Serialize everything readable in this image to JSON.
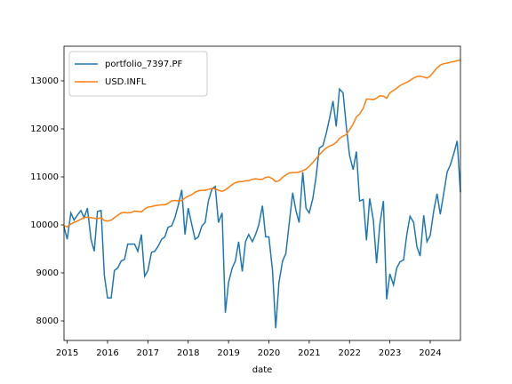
{
  "chart_data": {
    "type": "line",
    "xlabel": "date",
    "x": [
      2014.92,
      2015.0,
      2015.09,
      2015.17,
      2015.25,
      2015.34,
      2015.42,
      2015.5,
      2015.59,
      2015.67,
      2015.75,
      2015.84,
      2015.92,
      2016.0,
      2016.09,
      2016.17,
      2016.25,
      2016.34,
      2016.42,
      2016.5,
      2016.59,
      2016.67,
      2016.75,
      2016.84,
      2016.92,
      2017.0,
      2017.09,
      2017.17,
      2017.25,
      2017.34,
      2017.42,
      2017.5,
      2017.59,
      2017.67,
      2017.75,
      2017.84,
      2017.92,
      2018.0,
      2018.09,
      2018.17,
      2018.25,
      2018.34,
      2018.42,
      2018.5,
      2018.59,
      2018.67,
      2018.75,
      2018.84,
      2018.92,
      2019.0,
      2019.09,
      2019.17,
      2019.25,
      2019.34,
      2019.42,
      2019.5,
      2019.59,
      2019.67,
      2019.75,
      2019.84,
      2019.92,
      2020.0,
      2020.09,
      2020.17,
      2020.25,
      2020.34,
      2020.42,
      2020.5,
      2020.59,
      2020.67,
      2020.75,
      2020.84,
      2020.92,
      2021.0,
      2021.09,
      2021.17,
      2021.25,
      2021.34,
      2021.42,
      2021.5,
      2021.59,
      2021.67,
      2021.75,
      2021.84,
      2021.92,
      2022.0,
      2022.09,
      2022.17,
      2022.25,
      2022.34,
      2022.42,
      2022.5,
      2022.59,
      2022.67,
      2022.75,
      2022.84,
      2022.92,
      2023.0,
      2023.09,
      2023.17,
      2023.25,
      2023.34,
      2023.42,
      2023.5,
      2023.59,
      2023.67,
      2023.75,
      2023.84,
      2023.92,
      2024.0,
      2024.09,
      2024.17,
      2024.25,
      2024.34,
      2024.42,
      2024.5,
      2024.59,
      2024.67,
      2024.75
    ],
    "series": [
      {
        "name": "portfolio_7397.PF",
        "color": "#1f77b4",
        "values": [
          9960,
          9700,
          10250,
          10100,
          10200,
          10300,
          10150,
          10350,
          9700,
          9450,
          10280,
          10300,
          8950,
          8480,
          8480,
          9050,
          9100,
          9250,
          9280,
          9600,
          9600,
          9600,
          9450,
          9800,
          8930,
          9050,
          9430,
          9450,
          9550,
          9700,
          9750,
          9950,
          9980,
          10150,
          10400,
          10730,
          9800,
          10350,
          10000,
          9700,
          9750,
          9980,
          10050,
          10500,
          10750,
          10800,
          10050,
          10250,
          8170,
          8800,
          9100,
          9250,
          9650,
          9030,
          9650,
          9800,
          9650,
          9800,
          10000,
          10400,
          9750,
          9750,
          9050,
          7850,
          8800,
          9250,
          9400,
          10000,
          10670,
          10300,
          10050,
          11100,
          10350,
          10250,
          10550,
          11000,
          11600,
          11650,
          11900,
          12200,
          12580,
          12050,
          12830,
          12750,
          12050,
          11450,
          11150,
          11530,
          10500,
          10530,
          9680,
          10550,
          10100,
          9200,
          10000,
          10500,
          8450,
          8980,
          8750,
          9100,
          9230,
          9270,
          9800,
          10180,
          10050,
          9550,
          9350,
          10200,
          9650,
          9780,
          10300,
          10650,
          10220,
          10680,
          11100,
          11250,
          11500,
          11750,
          10680
        ]
      },
      {
        "name": "USD.INFL",
        "color": "#ff7f0e",
        "values": [
          9980,
          9960,
          10020,
          10050,
          10080,
          10120,
          10150,
          10160,
          10150,
          10140,
          10130,
          10150,
          10090,
          10080,
          10100,
          10150,
          10200,
          10250,
          10260,
          10250,
          10260,
          10290,
          10280,
          10270,
          10330,
          10370,
          10380,
          10400,
          10410,
          10420,
          10420,
          10450,
          10500,
          10510,
          10500,
          10510,
          10560,
          10600,
          10630,
          10680,
          10710,
          10720,
          10720,
          10740,
          10760,
          10750,
          10720,
          10700,
          10730,
          10780,
          10840,
          10880,
          10900,
          10900,
          10920,
          10920,
          10950,
          10960,
          10950,
          10950,
          10990,
          11000,
          10960,
          10900,
          10920,
          10990,
          11040,
          11080,
          11090,
          11090,
          11100,
          11130,
          11160,
          11220,
          11300,
          11380,
          11460,
          11540,
          11600,
          11640,
          11670,
          11720,
          11800,
          11850,
          11880,
          11980,
          12100,
          12250,
          12310,
          12430,
          12620,
          12620,
          12610,
          12640,
          12690,
          12680,
          12640,
          12750,
          12800,
          12850,
          12900,
          12940,
          12970,
          13010,
          13060,
          13090,
          13100,
          13080,
          13060,
          13100,
          13190,
          13270,
          13330,
          13360,
          13370,
          13390,
          13400,
          13420,
          13440
        ]
      }
    ],
    "xlim": [
      2014.92,
      2024.75
    ],
    "xticks": [
      2015,
      2016,
      2017,
      2018,
      2019,
      2020,
      2021,
      2022,
      2023,
      2024
    ],
    "ylim": [
      7593,
      13722
    ],
    "yticks": [
      8000,
      9000,
      10000,
      11000,
      12000,
      13000
    ],
    "grid": false,
    "legend": "upper-left"
  }
}
